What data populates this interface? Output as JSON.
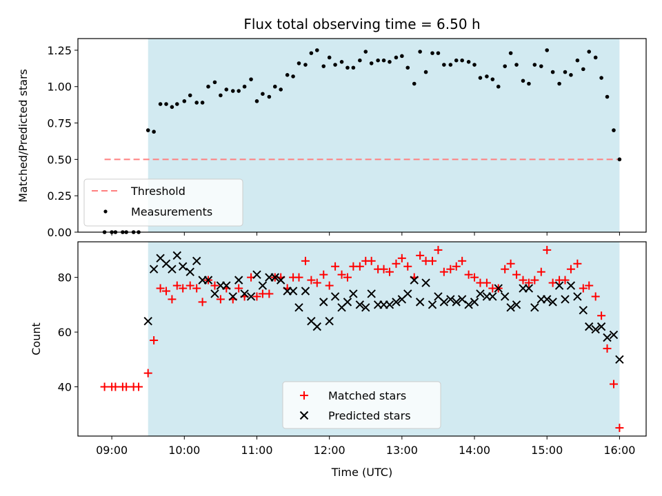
{
  "chart_data": [
    {
      "type": "scatter",
      "title": "Flux total observing time = 6.50 h",
      "ylabel": "Matched/Predicted stars",
      "xlabel": "",
      "ylim": [
        0,
        1.33
      ],
      "yticks": [
        0.0,
        0.25,
        0.5,
        0.75,
        1.0,
        1.25
      ],
      "ytick_labels": [
        "0.00",
        "0.25",
        "0.50",
        "0.75",
        "1.00",
        "1.25"
      ],
      "xlim_hours": [
        8.533,
        16.367
      ],
      "shaded_span_hours": [
        9.5,
        16.0
      ],
      "grid": false,
      "legend": "lower-left",
      "threshold": {
        "name": "Threshold",
        "value": 0.5,
        "x_start": 8.9,
        "x_end": 16.0,
        "color": "#ff7f7f"
      },
      "measurements": {
        "name": "Measurements",
        "color": "#000000",
        "x": [
          8.9,
          9.0,
          9.05,
          9.15,
          9.2,
          9.3,
          9.37,
          9.5,
          9.58,
          9.67,
          9.75,
          9.83,
          9.9,
          10.0,
          10.08,
          10.17,
          10.25,
          10.33,
          10.42,
          10.5,
          10.58,
          10.67,
          10.75,
          10.83,
          10.92,
          11.0,
          11.08,
          11.17,
          11.25,
          11.33,
          11.42,
          11.5,
          11.58,
          11.67,
          11.75,
          11.83,
          11.92,
          12.0,
          12.08,
          12.17,
          12.25,
          12.33,
          12.42,
          12.5,
          12.58,
          12.67,
          12.75,
          12.83,
          12.92,
          13.0,
          13.08,
          13.17,
          13.25,
          13.33,
          13.42,
          13.5,
          13.58,
          13.67,
          13.75,
          13.83,
          13.92,
          14.0,
          14.08,
          14.17,
          14.25,
          14.33,
          14.42,
          14.5,
          14.58,
          14.67,
          14.75,
          14.83,
          14.92,
          15.0,
          15.08,
          15.17,
          15.25,
          15.33,
          15.42,
          15.5,
          15.58,
          15.67,
          15.75,
          15.83,
          15.92,
          16.0
        ],
        "y": [
          0,
          0,
          0,
          0,
          0,
          0,
          0,
          0.7,
          0.69,
          0.88,
          0.88,
          0.86,
          0.88,
          0.9,
          0.94,
          0.89,
          0.89,
          1.0,
          1.03,
          0.94,
          0.98,
          0.97,
          0.97,
          1.0,
          1.05,
          0.9,
          0.95,
          0.93,
          1.0,
          0.98,
          1.08,
          1.07,
          1.16,
          1.15,
          1.23,
          1.25,
          1.14,
          1.2,
          1.15,
          1.17,
          1.13,
          1.13,
          1.18,
          1.24,
          1.16,
          1.18,
          1.18,
          1.17,
          1.2,
          1.21,
          1.13,
          1.02,
          1.24,
          1.1,
          1.23,
          1.23,
          1.15,
          1.15,
          1.18,
          1.18,
          1.17,
          1.15,
          1.06,
          1.07,
          1.05,
          1.0,
          1.14,
          1.23,
          1.15,
          1.04,
          1.02,
          1.15,
          1.14,
          1.25,
          1.1,
          1.02,
          1.1,
          1.08,
          1.18,
          1.12,
          1.24,
          1.2,
          1.06,
          0.93,
          0.7,
          0.5
        ]
      }
    },
    {
      "type": "scatter",
      "title": "",
      "xlabel": "Time (UTC)",
      "ylabel": "Count",
      "ylim": [
        22,
        93
      ],
      "yticks": [
        40,
        60,
        80
      ],
      "ytick_labels": [
        "40",
        "60",
        "80"
      ],
      "xlim_hours": [
        8.533,
        16.367
      ],
      "xticks_hours": [
        9,
        10,
        11,
        12,
        13,
        14,
        15,
        16
      ],
      "xtick_labels": [
        "09:00",
        "10:00",
        "11:00",
        "12:00",
        "13:00",
        "14:00",
        "15:00",
        "16:00"
      ],
      "shaded_span_hours": [
        9.5,
        16.0
      ],
      "grid": false,
      "legend": "lower-center",
      "matched": {
        "name": "Matched stars",
        "color": "#ff0000",
        "x": [
          8.9,
          9.0,
          9.05,
          9.15,
          9.2,
          9.3,
          9.37,
          9.5,
          9.58,
          9.67,
          9.75,
          9.83,
          9.9,
          9.98,
          10.08,
          10.17,
          10.25,
          10.33,
          10.42,
          10.5,
          10.58,
          10.67,
          10.75,
          10.83,
          10.92,
          11.0,
          11.08,
          11.17,
          11.25,
          11.33,
          11.42,
          11.5,
          11.58,
          11.67,
          11.75,
          11.83,
          11.92,
          12.0,
          12.08,
          12.17,
          12.25,
          12.33,
          12.42,
          12.5,
          12.58,
          12.67,
          12.75,
          12.83,
          12.92,
          13.0,
          13.08,
          13.17,
          13.25,
          13.33,
          13.42,
          13.5,
          13.58,
          13.67,
          13.75,
          13.83,
          13.92,
          14.0,
          14.08,
          14.17,
          14.25,
          14.33,
          14.42,
          14.5,
          14.58,
          14.67,
          14.75,
          14.83,
          14.92,
          15.0,
          15.08,
          15.17,
          15.25,
          15.33,
          15.42,
          15.5,
          15.58,
          15.67,
          15.75,
          15.83,
          15.92,
          16.0
        ],
        "y": [
          40,
          40,
          40,
          40,
          40,
          40,
          40,
          45,
          57,
          76,
          75,
          72,
          77,
          76,
          77,
          76,
          71,
          79,
          77,
          72,
          76,
          72,
          76,
          73,
          80,
          73,
          74,
          74,
          80,
          80,
          76,
          80,
          80,
          86,
          79,
          78,
          81,
          77,
          84,
          81,
          80,
          84,
          84,
          86,
          86,
          83,
          83,
          82,
          85,
          87,
          84,
          80,
          88,
          86,
          86,
          90,
          82,
          83,
          84,
          86,
          81,
          80,
          78,
          78,
          76,
          76,
          83,
          85,
          81,
          79,
          78,
          79,
          82,
          90,
          78,
          79,
          79,
          83,
          85,
          76,
          77,
          73,
          66,
          54,
          41,
          25
        ]
      },
      "predicted": {
        "name": "Predicted stars",
        "color": "#000000",
        "x": [
          9.5,
          9.58,
          9.67,
          9.75,
          9.83,
          9.9,
          9.98,
          10.08,
          10.17,
          10.25,
          10.33,
          10.42,
          10.5,
          10.58,
          10.67,
          10.75,
          10.83,
          10.92,
          11.0,
          11.08,
          11.17,
          11.25,
          11.33,
          11.42,
          11.5,
          11.58,
          11.67,
          11.75,
          11.83,
          11.92,
          12.0,
          12.08,
          12.17,
          12.25,
          12.33,
          12.42,
          12.5,
          12.58,
          12.67,
          12.75,
          12.83,
          12.92,
          13.0,
          13.08,
          13.17,
          13.25,
          13.33,
          13.42,
          13.5,
          13.58,
          13.67,
          13.75,
          13.83,
          13.92,
          14.0,
          14.08,
          14.17,
          14.25,
          14.33,
          14.42,
          14.5,
          14.58,
          14.67,
          14.75,
          14.83,
          14.92,
          15.0,
          15.08,
          15.17,
          15.25,
          15.33,
          15.42,
          15.5,
          15.58,
          15.67,
          15.75,
          15.83,
          15.92,
          16.0
        ],
        "y": [
          64,
          83,
          87,
          85,
          83,
          88,
          84,
          82,
          86,
          79,
          79,
          74,
          77,
          77,
          73,
          79,
          74,
          73,
          81,
          77,
          80,
          80,
          79,
          75,
          75,
          69,
          75,
          64,
          62,
          71,
          64,
          73,
          69,
          71,
          74,
          70,
          69,
          74,
          70,
          70,
          70,
          71,
          72,
          74,
          79,
          71,
          78,
          70,
          73,
          71,
          72,
          71,
          72,
          70,
          71,
          74,
          73,
          73,
          76,
          73,
          69,
          70,
          76,
          76,
          69,
          72,
          72,
          71,
          77,
          72,
          77,
          73,
          68,
          62,
          61,
          62,
          58,
          59,
          50
        ]
      }
    }
  ]
}
